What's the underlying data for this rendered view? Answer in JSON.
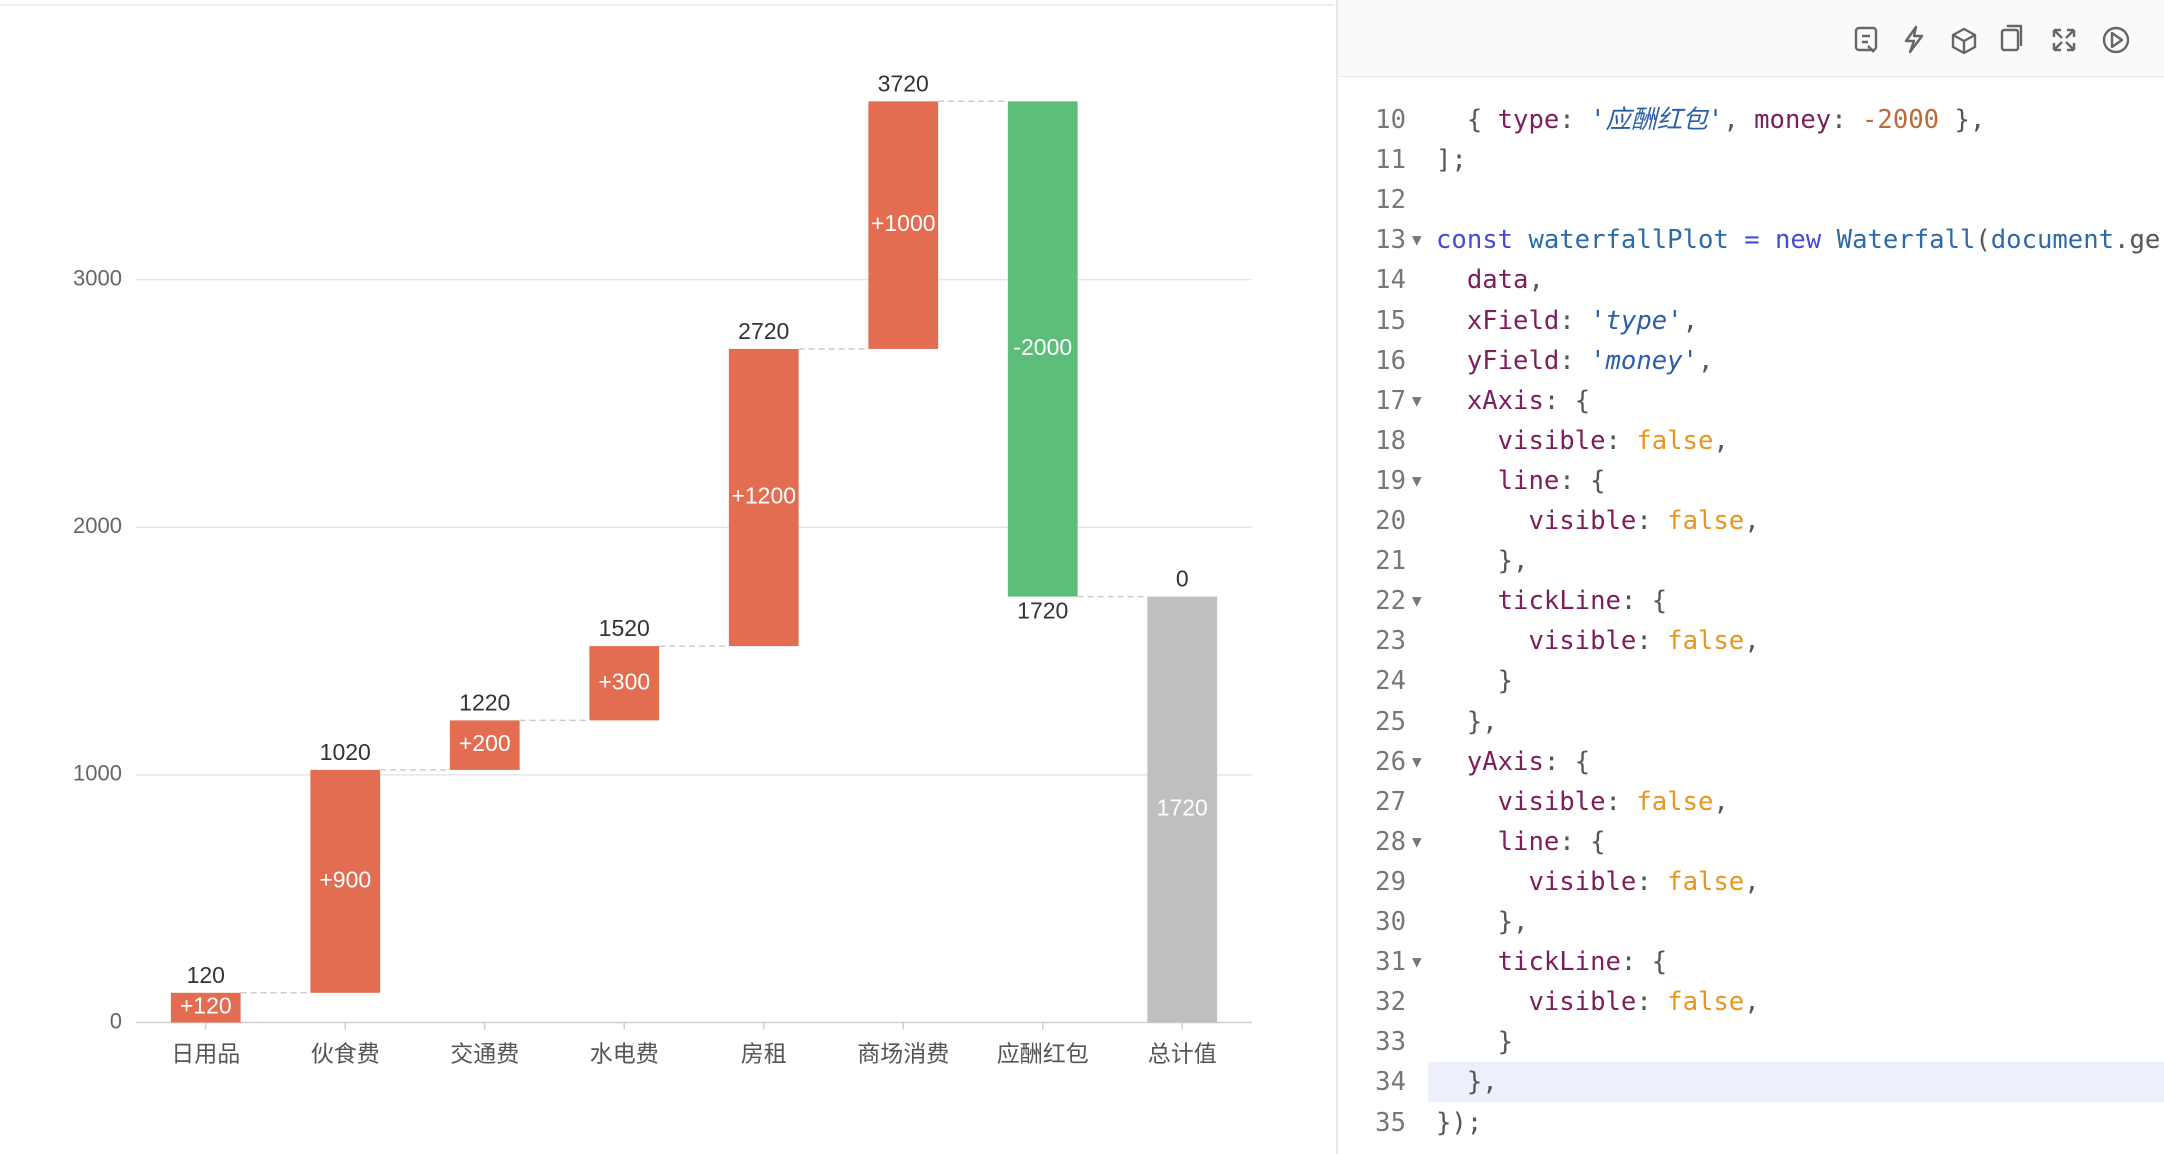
{
  "chart_data": {
    "type": "waterfall",
    "categories": [
      "日用品",
      "伙食费",
      "交通费",
      "水电费",
      "房租",
      "商场消费",
      "应酬红包",
      "总计值"
    ],
    "values": [
      120,
      900,
      200,
      300,
      1200,
      1000,
      -2000,
      1720
    ],
    "value_labels": [
      "+120",
      "+900",
      "+200",
      "+300",
      "+1200",
      "+1000",
      "-2000",
      "1720"
    ],
    "cumulative_labels": [
      "120",
      "1020",
      "1220",
      "1520",
      "2720",
      "3720",
      "1720",
      "0"
    ],
    "rise_color": "#e36d51",
    "fall_color": "#5dbd7a",
    "total_color": "#bfbfc1",
    "ylim": [
      0,
      3800
    ],
    "yticks": [
      0,
      1000,
      2000,
      3000
    ],
    "grid": true
  },
  "code": {
    "lines": [
      {
        "n": 10,
        "tokens": [
          {
            "text": "  { ",
            "color": "#555555"
          },
          {
            "text": "type",
            "color": "#7b1e5b"
          },
          {
            "text": ": ",
            "color": "#555555"
          },
          {
            "text": "'应酬红包'",
            "color": "#2a5fa8",
            "italic": true
          },
          {
            "text": ", ",
            "color": "#555555"
          },
          {
            "text": "money",
            "color": "#7b1e5b"
          },
          {
            "text": ": ",
            "color": "#555555"
          },
          {
            "text": "-2000",
            "color": "#b86a3a"
          },
          {
            "text": " },",
            "color": "#555555"
          }
        ]
      },
      {
        "n": 11,
        "tokens": [
          {
            "text": "];",
            "color": "#555555"
          }
        ]
      },
      {
        "n": 12,
        "tokens": []
      },
      {
        "n": 13,
        "fold": true,
        "tokens": [
          {
            "text": "const ",
            "color": "#4a49d6"
          },
          {
            "text": "waterfallPlot ",
            "color": "#2d6aa8"
          },
          {
            "text": "= ",
            "color": "#4a49d6"
          },
          {
            "text": "new ",
            "color": "#4a49d6"
          },
          {
            "text": "Waterfall",
            "color": "#2d6aa8"
          },
          {
            "text": "(",
            "color": "#555555"
          },
          {
            "text": "document",
            "color": "#2d6aa8"
          },
          {
            "text": ".ge",
            "color": "#555555"
          }
        ]
      },
      {
        "n": 14,
        "tokens": [
          {
            "text": "  data",
            "color": "#7b1e5b"
          },
          {
            "text": ",",
            "color": "#555555"
          }
        ]
      },
      {
        "n": 15,
        "tokens": [
          {
            "text": "  xField",
            "color": "#7b1e5b"
          },
          {
            "text": ": ",
            "color": "#555555"
          },
          {
            "text": "'type'",
            "color": "#2a5fa8",
            "italic": true
          },
          {
            "text": ",",
            "color": "#555555"
          }
        ]
      },
      {
        "n": 16,
        "tokens": [
          {
            "text": "  yField",
            "color": "#7b1e5b"
          },
          {
            "text": ": ",
            "color": "#555555"
          },
          {
            "text": "'money'",
            "color": "#2a5fa8",
            "italic": true
          },
          {
            "text": ",",
            "color": "#555555"
          }
        ]
      },
      {
        "n": 17,
        "fold": true,
        "tokens": [
          {
            "text": "  xAxis",
            "color": "#7b1e5b"
          },
          {
            "text": ": {",
            "color": "#555555"
          }
        ]
      },
      {
        "n": 18,
        "tokens": [
          {
            "text": "    visible",
            "color": "#7b1e5b"
          },
          {
            "text": ": ",
            "color": "#555555"
          },
          {
            "text": "false",
            "color": "#e8951d"
          },
          {
            "text": ",",
            "color": "#555555"
          }
        ]
      },
      {
        "n": 19,
        "fold": true,
        "tokens": [
          {
            "text": "    line",
            "color": "#7b1e5b"
          },
          {
            "text": ": {",
            "color": "#555555"
          }
        ]
      },
      {
        "n": 20,
        "tokens": [
          {
            "text": "      visible",
            "color": "#7b1e5b"
          },
          {
            "text": ": ",
            "color": "#555555"
          },
          {
            "text": "false",
            "color": "#e8951d"
          },
          {
            "text": ",",
            "color": "#555555"
          }
        ]
      },
      {
        "n": 21,
        "tokens": [
          {
            "text": "    },",
            "color": "#555555"
          }
        ]
      },
      {
        "n": 22,
        "fold": true,
        "tokens": [
          {
            "text": "    tickLine",
            "color": "#7b1e5b"
          },
          {
            "text": ": {",
            "color": "#555555"
          }
        ]
      },
      {
        "n": 23,
        "tokens": [
          {
            "text": "      visible",
            "color": "#7b1e5b"
          },
          {
            "text": ": ",
            "color": "#555555"
          },
          {
            "text": "false",
            "color": "#e8951d"
          },
          {
            "text": ",",
            "color": "#555555"
          }
        ]
      },
      {
        "n": 24,
        "tokens": [
          {
            "text": "    }",
            "color": "#555555"
          }
        ]
      },
      {
        "n": 25,
        "tokens": [
          {
            "text": "  },",
            "color": "#555555"
          }
        ]
      },
      {
        "n": 26,
        "fold": true,
        "tokens": [
          {
            "text": "  yAxis",
            "color": "#7b1e5b"
          },
          {
            "text": ": {",
            "color": "#555555"
          }
        ]
      },
      {
        "n": 27,
        "tokens": [
          {
            "text": "    visible",
            "color": "#7b1e5b"
          },
          {
            "text": ": ",
            "color": "#555555"
          },
          {
            "text": "false",
            "color": "#e8951d"
          },
          {
            "text": ",",
            "color": "#555555"
          }
        ]
      },
      {
        "n": 28,
        "fold": true,
        "tokens": [
          {
            "text": "    line",
            "color": "#7b1e5b"
          },
          {
            "text": ": {",
            "color": "#555555"
          }
        ]
      },
      {
        "n": 29,
        "tokens": [
          {
            "text": "      visible",
            "color": "#7b1e5b"
          },
          {
            "text": ": ",
            "color": "#555555"
          },
          {
            "text": "false",
            "color": "#e8951d"
          },
          {
            "text": ",",
            "color": "#555555"
          }
        ]
      },
      {
        "n": 30,
        "tokens": [
          {
            "text": "    },",
            "color": "#555555"
          }
        ]
      },
      {
        "n": 31,
        "fold": true,
        "tokens": [
          {
            "text": "    tickLine",
            "color": "#7b1e5b"
          },
          {
            "text": ": {",
            "color": "#555555"
          }
        ]
      },
      {
        "n": 32,
        "tokens": [
          {
            "text": "      visible",
            "color": "#7b1e5b"
          },
          {
            "text": ": ",
            "color": "#555555"
          },
          {
            "text": "false",
            "color": "#e8951d"
          },
          {
            "text": ",",
            "color": "#555555"
          }
        ]
      },
      {
        "n": 33,
        "tokens": [
          {
            "text": "    }",
            "color": "#555555"
          }
        ]
      },
      {
        "n": 34,
        "highlighted": true,
        "tokens": [
          {
            "text": "  },",
            "color": "#555555"
          }
        ]
      },
      {
        "n": 35,
        "tokens": [
          {
            "text": "});",
            "color": "#555555"
          }
        ]
      }
    ]
  }
}
